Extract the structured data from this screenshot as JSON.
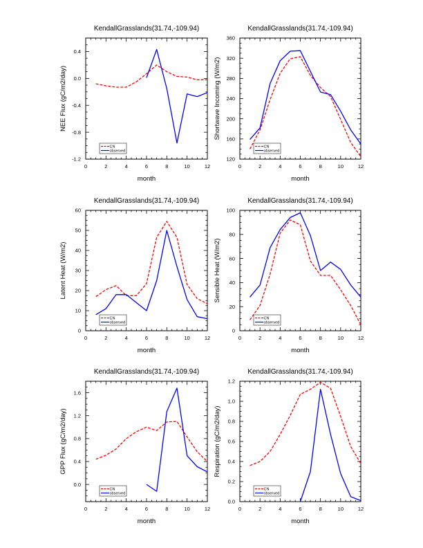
{
  "chart_data": [
    {
      "type": "line",
      "title": "KendallGrasslands(31.74,-109.94)",
      "xlabel": "month",
      "ylabel": "NEE Flux (gC/m2/day)",
      "xlim": [
        0,
        12
      ],
      "ylim": [
        -1.2,
        0.6
      ],
      "xticks": [
        0,
        2,
        4,
        6,
        8,
        10,
        12
      ],
      "yticks": [
        -1.2,
        -0.8,
        -0.4,
        0.0,
        0.4
      ],
      "ytick_labels": [
        "-1.2",
        "-0.8",
        "-0.4",
        "0.0",
        "0.4"
      ],
      "grid": false,
      "legend": "bottom-left",
      "series": [
        {
          "name": "CN",
          "color": "#ff0000",
          "style": "dashed",
          "x": [
            1,
            2,
            3,
            4,
            5,
            6,
            7,
            8,
            9,
            10,
            11,
            12
          ],
          "values": [
            -0.08,
            -0.11,
            -0.13,
            -0.13,
            -0.05,
            0.07,
            0.2,
            0.1,
            0.03,
            0.02,
            -0.02,
            -0.02
          ]
        },
        {
          "name": "observed",
          "color": "#0000ff",
          "style": "solid",
          "x": [
            6,
            7,
            8,
            9,
            10,
            11,
            12
          ],
          "values": [
            0.01,
            0.43,
            -0.15,
            -0.96,
            -0.23,
            -0.27,
            -0.21
          ]
        }
      ]
    },
    {
      "type": "line",
      "title": "KendallGrasslands(31.74,-109.94)",
      "xlabel": "month",
      "ylabel": "Shortwave Incoming (W/m2)",
      "xlim": [
        0,
        12
      ],
      "ylim": [
        120,
        360
      ],
      "xticks": [
        0,
        2,
        4,
        6,
        8,
        10,
        12
      ],
      "yticks": [
        120,
        160,
        200,
        240,
        280,
        320,
        360
      ],
      "ytick_labels": [
        "120",
        "160",
        "200",
        "240",
        "280",
        "320",
        "360"
      ],
      "grid": false,
      "legend": "bottom-left",
      "series": [
        {
          "name": "CN",
          "color": "#ff0000",
          "style": "dashed",
          "x": [
            1,
            2,
            3,
            4,
            5,
            6,
            7,
            8,
            9,
            10,
            11,
            12
          ],
          "values": [
            140,
            178,
            238,
            290,
            319,
            323,
            286,
            262,
            244,
            199,
            153,
            125
          ]
        },
        {
          "name": "observed",
          "color": "#0000ff",
          "style": "solid",
          "x": [
            1,
            2,
            3,
            4,
            5,
            6,
            7,
            8,
            9,
            10,
            11,
            12
          ],
          "values": [
            159,
            182,
            270,
            315,
            334,
            335,
            294,
            253,
            248,
            215,
            178,
            150
          ]
        }
      ]
    },
    {
      "type": "line",
      "title": "KendallGrasslands(31.74,-109.94)",
      "xlabel": "month",
      "ylabel": "Latent Heat (W/m2)",
      "xlim": [
        0,
        12
      ],
      "ylim": [
        0,
        60
      ],
      "xticks": [
        0,
        2,
        4,
        6,
        8,
        10,
        12
      ],
      "yticks": [
        0,
        10,
        20,
        30,
        40,
        50,
        60
      ],
      "ytick_labels": [
        "0",
        "10",
        "20",
        "30",
        "40",
        "50",
        "60"
      ],
      "grid": false,
      "legend": "bottom-left",
      "series": [
        {
          "name": "CN",
          "color": "#ff0000",
          "style": "dashed",
          "x": [
            1,
            2,
            3,
            4,
            5,
            6,
            7,
            8,
            9,
            10,
            11,
            12
          ],
          "values": [
            17,
            20.5,
            22.5,
            17.5,
            17.5,
            23.5,
            46.5,
            54.5,
            46.5,
            23,
            16,
            13.5
          ]
        },
        {
          "name": "observed",
          "color": "#0000ff",
          "style": "solid",
          "x": [
            1,
            2,
            3,
            4,
            5,
            6,
            7,
            8,
            9,
            10,
            11,
            12
          ],
          "values": [
            8,
            11,
            18,
            18,
            14,
            10,
            25,
            50,
            32,
            15.5,
            7,
            6
          ]
        }
      ]
    },
    {
      "type": "line",
      "title": "KendallGrasslands(31.74,-109.94)",
      "xlabel": "month",
      "ylabel": "Sensible Heat (W/m2)",
      "xlim": [
        0,
        12
      ],
      "ylim": [
        0,
        100
      ],
      "xticks": [
        0,
        2,
        4,
        6,
        8,
        10,
        12
      ],
      "yticks": [
        0,
        20,
        40,
        60,
        80,
        100
      ],
      "ytick_labels": [
        "0",
        "20",
        "40",
        "60",
        "80",
        "100"
      ],
      "grid": false,
      "legend": "bottom-left",
      "series": [
        {
          "name": "CN",
          "color": "#ff0000",
          "style": "dashed",
          "x": [
            1,
            2,
            3,
            4,
            5,
            6,
            7,
            8,
            9,
            10,
            11,
            12
          ],
          "values": [
            9,
            21,
            47,
            81,
            92,
            88,
            58,
            46,
            46,
            34,
            21,
            5
          ]
        },
        {
          "name": "observed",
          "color": "#0000ff",
          "style": "solid",
          "x": [
            1,
            2,
            3,
            4,
            5,
            6,
            7,
            8,
            9,
            10,
            11,
            12
          ],
          "values": [
            28,
            38,
            69,
            84,
            94,
            98,
            79,
            50,
            57,
            51,
            38,
            28
          ]
        }
      ]
    },
    {
      "type": "line",
      "title": "KendallGrasslands(31.74,-109.94)",
      "xlabel": "month",
      "ylabel": "GPP Flux (gC/m2/day)",
      "xlim": [
        0,
        12
      ],
      "ylim": [
        -0.3,
        1.8
      ],
      "xticks": [
        0,
        2,
        4,
        6,
        8,
        10,
        12
      ],
      "yticks": [
        0.0,
        0.4,
        0.8,
        1.2,
        1.6
      ],
      "ytick_labels": [
        "0.0",
        "0.4",
        "0.8",
        "1.2",
        "1.6"
      ],
      "grid": false,
      "legend": "bottom-left",
      "series": [
        {
          "name": "CN",
          "color": "#ff0000",
          "style": "dashed",
          "x": [
            1,
            2,
            3,
            4,
            5,
            6,
            7,
            8,
            9,
            10,
            11,
            12
          ],
          "values": [
            0.44,
            0.51,
            0.62,
            0.8,
            0.92,
            1.0,
            0.94,
            1.09,
            1.1,
            0.83,
            0.57,
            0.4
          ]
        },
        {
          "name": "observed",
          "color": "#0000ff",
          "style": "solid",
          "x": [
            6,
            7,
            8,
            9,
            10,
            11,
            12
          ],
          "values": [
            0.0,
            -0.12,
            1.27,
            1.68,
            0.5,
            0.31,
            0.22
          ]
        }
      ]
    },
    {
      "type": "line",
      "title": "KendallGrasslands(31.74,-109.94)",
      "xlabel": "month",
      "ylabel": "Respiration (gC/m2/day)",
      "xlim": [
        0,
        12
      ],
      "ylim": [
        0,
        1.2
      ],
      "xticks": [
        0,
        2,
        4,
        6,
        8,
        10,
        12
      ],
      "yticks": [
        0.0,
        0.2,
        0.4,
        0.6,
        0.8,
        1.0,
        1.2
      ],
      "ytick_labels": [
        "0.0",
        "0.2",
        "0.4",
        "0.6",
        "0.8",
        "1.0",
        "1.2"
      ],
      "grid": false,
      "legend": "bottom-left",
      "series": [
        {
          "name": "CN",
          "color": "#ff0000",
          "style": "dashed",
          "x": [
            1,
            2,
            3,
            4,
            5,
            6,
            7,
            8,
            9,
            10,
            11,
            12
          ],
          "values": [
            0.36,
            0.4,
            0.5,
            0.67,
            0.86,
            1.07,
            1.12,
            1.19,
            1.13,
            0.85,
            0.55,
            0.38
          ]
        },
        {
          "name": "observed",
          "color": "#0000ff",
          "style": "solid",
          "x": [
            6,
            7,
            8,
            9,
            10,
            11,
            12
          ],
          "values": [
            0.0,
            0.3,
            1.12,
            0.67,
            0.28,
            0.05,
            0.01
          ]
        }
      ]
    }
  ]
}
